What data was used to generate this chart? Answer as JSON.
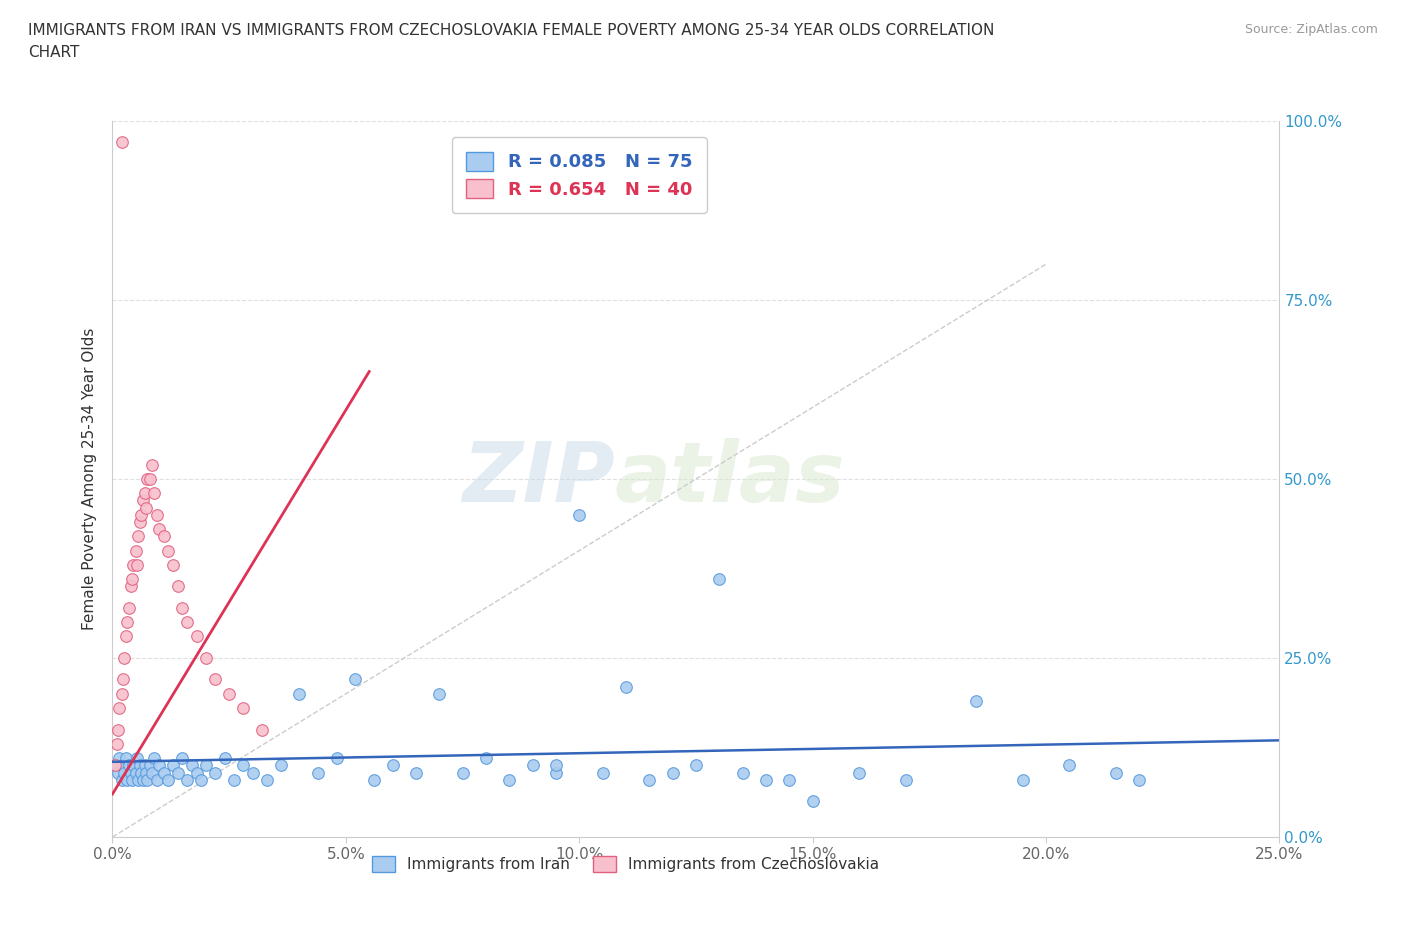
{
  "title_line1": "IMMIGRANTS FROM IRAN VS IMMIGRANTS FROM CZECHOSLOVAKIA FEMALE POVERTY AMONG 25-34 YEAR OLDS CORRELATION",
  "title_line2": "CHART",
  "source": "Source: ZipAtlas.com",
  "ylabel": "Female Poverty Among 25-34 Year Olds",
  "xlim": [
    0,
    0.25
  ],
  "ylim": [
    0,
    1.0
  ],
  "xticks": [
    0.0,
    0.05,
    0.1,
    0.15,
    0.2,
    0.25
  ],
  "yticks": [
    0.0,
    0.25,
    0.5,
    0.75,
    1.0
  ],
  "xticklabels": [
    "0.0%",
    "5.0%",
    "10.0%",
    "15.0%",
    "20.0%",
    "25.0%"
  ],
  "yticklabels_right": [
    "0.0%",
    "25.0%",
    "50.0%",
    "75.0%",
    "100.0%"
  ],
  "iran_color": "#aaccf0",
  "iran_edge_color": "#5599dd",
  "czech_color": "#f8c0cc",
  "czech_edge_color": "#e06080",
  "iran_line_color": "#3366bb",
  "czech_line_color": "#dd3355",
  "ref_line_color": "#cccccc",
  "R_iran": 0.085,
  "N_iran": 75,
  "R_czech": 0.654,
  "N_czech": 40,
  "legend_iran": "Immigrants from Iran",
  "legend_czech": "Immigrants from Czechoslovakia",
  "watermark_zip": "ZIP",
  "watermark_atlas": "atlas",
  "iran_x": [
    0.0008,
    0.0012,
    0.0015,
    0.002,
    0.0022,
    0.0025,
    0.003,
    0.0032,
    0.0035,
    0.004,
    0.0042,
    0.0045,
    0.005,
    0.0052,
    0.0055,
    0.006,
    0.0062,
    0.0065,
    0.007,
    0.0072,
    0.0075,
    0.008,
    0.0085,
    0.009,
    0.0095,
    0.01,
    0.011,
    0.012,
    0.013,
    0.014,
    0.015,
    0.016,
    0.017,
    0.018,
    0.019,
    0.02,
    0.022,
    0.024,
    0.026,
    0.028,
    0.03,
    0.033,
    0.036,
    0.04,
    0.044,
    0.048,
    0.052,
    0.056,
    0.06,
    0.065,
    0.07,
    0.075,
    0.08,
    0.085,
    0.09,
    0.095,
    0.1,
    0.11,
    0.12,
    0.13,
    0.14,
    0.15,
    0.16,
    0.17,
    0.185,
    0.195,
    0.205,
    0.215,
    0.22,
    0.095,
    0.105,
    0.115,
    0.125,
    0.135,
    0.145
  ],
  "iran_y": [
    0.1,
    0.09,
    0.11,
    0.08,
    0.1,
    0.09,
    0.11,
    0.08,
    0.1,
    0.09,
    0.08,
    0.1,
    0.09,
    0.11,
    0.08,
    0.1,
    0.09,
    0.08,
    0.1,
    0.09,
    0.08,
    0.1,
    0.09,
    0.11,
    0.08,
    0.1,
    0.09,
    0.08,
    0.1,
    0.09,
    0.11,
    0.08,
    0.1,
    0.09,
    0.08,
    0.1,
    0.09,
    0.11,
    0.08,
    0.1,
    0.09,
    0.08,
    0.1,
    0.2,
    0.09,
    0.11,
    0.22,
    0.08,
    0.1,
    0.09,
    0.2,
    0.09,
    0.11,
    0.08,
    0.1,
    0.09,
    0.45,
    0.21,
    0.09,
    0.36,
    0.08,
    0.05,
    0.09,
    0.08,
    0.19,
    0.08,
    0.1,
    0.09,
    0.08,
    0.1,
    0.09,
    0.08,
    0.1,
    0.09,
    0.08
  ],
  "czech_x": [
    0.0005,
    0.001,
    0.0012,
    0.0015,
    0.002,
    0.0022,
    0.0025,
    0.003,
    0.0032,
    0.0035,
    0.004,
    0.0042,
    0.0045,
    0.005,
    0.0052,
    0.0055,
    0.006,
    0.0062,
    0.0065,
    0.007,
    0.0072,
    0.0075,
    0.008,
    0.0085,
    0.009,
    0.0095,
    0.01,
    0.011,
    0.012,
    0.013,
    0.014,
    0.015,
    0.016,
    0.018,
    0.02,
    0.022,
    0.025,
    0.028,
    0.032,
    0.002
  ],
  "czech_y": [
    0.1,
    0.13,
    0.15,
    0.18,
    0.2,
    0.22,
    0.25,
    0.28,
    0.3,
    0.32,
    0.35,
    0.36,
    0.38,
    0.4,
    0.38,
    0.42,
    0.44,
    0.45,
    0.47,
    0.48,
    0.46,
    0.5,
    0.5,
    0.52,
    0.48,
    0.45,
    0.43,
    0.42,
    0.4,
    0.38,
    0.35,
    0.32,
    0.3,
    0.28,
    0.25,
    0.22,
    0.2,
    0.18,
    0.15,
    0.97
  ],
  "iran_trend_x": [
    0.0,
    0.25
  ],
  "iran_trend_y": [
    0.105,
    0.135
  ],
  "czech_trend_x": [
    0.0,
    0.055
  ],
  "czech_trend_y": [
    0.06,
    0.65
  ]
}
